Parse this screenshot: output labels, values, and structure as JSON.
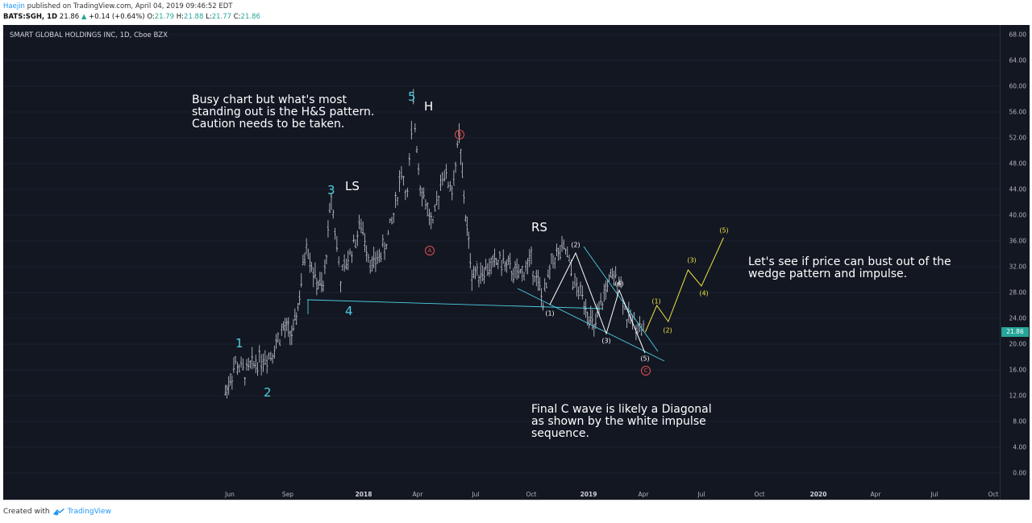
{
  "header": {
    "author": "Haejin",
    "published": "published on TradingView.com, April 04, 2019 09:46:52 EDT",
    "symbol_line": "BATS:SGH, 1D",
    "last": "21.86",
    "change": "+0.14 (+0.64%)",
    "o_label": "O:",
    "o": "21.79",
    "h_label": "H:",
    "h": "21.88",
    "l_label": "L:",
    "l": "21.77",
    "c_label": "C:",
    "c": "21.86"
  },
  "chart_title": "SMART GLOBAL HOLDINGS INC, 1D, Cboe BZX",
  "notes": {
    "hs": "Busy chart but what's most\nstanding out is the H&S pattern.\nCaution needs to be taken.",
    "breakout": "Let's see if price can bust out of the\nwedge pattern and impulse.",
    "diagonal": "Final C wave is likely a Diagonal\nas shown by the white impulse\nsequence."
  },
  "wave_labels": {
    "w1": "1",
    "w2": "2",
    "w3": "3",
    "w4": "4",
    "w5": "5",
    "ls": "LS",
    "h": "H",
    "rs": "RS",
    "a": "A",
    "b": "B",
    "c": "C",
    "d1": "(1)",
    "d2": "(2)",
    "d3": "(3)",
    "d4": "(4)",
    "d5": "(5)",
    "p1": "(1)",
    "p2": "(2)",
    "p3": "(3)",
    "p4": "(4)",
    "p5": "(5)"
  },
  "price_tag": "21.86",
  "footer": {
    "created_with": "Created with",
    "brand": "TradingView"
  },
  "colors": {
    "background": "#131722",
    "candle": "#d1d4dc",
    "trendline": "#4dd0e1",
    "projection": "#f0e442",
    "abc": "#e05050"
  },
  "chart_data": {
    "type": "line",
    "title": "SMART GLOBAL HOLDINGS INC, 1D, Cboe BZX",
    "ylim": [
      0,
      68
    ],
    "y_ticks": [
      "68.00",
      "64.00",
      "60.00",
      "56.00",
      "52.00",
      "48.00",
      "44.00",
      "40.00",
      "36.00",
      "32.00",
      "28.00",
      "24.00",
      "20.00",
      "16.00",
      "12.00",
      "8.00",
      "4.00",
      "0.00"
    ],
    "x_ticks": [
      "Jun",
      "Sep",
      "2018",
      "Apr",
      "Jul",
      "Oct",
      "2019",
      "Apr",
      "Jul",
      "Oct",
      "2020",
      "Apr",
      "Jul",
      "Oct"
    ],
    "series": [
      {
        "values": [
          [
            "2017-05-25",
            12.5
          ],
          [
            "2017-06-10",
            17.0
          ],
          [
            "2017-06-25",
            15.5
          ],
          [
            "2017-07-15",
            17.5
          ],
          [
            "2017-08-05",
            18.5
          ],
          [
            "2017-08-25",
            22.5
          ],
          [
            "2017-09-10",
            21.5
          ],
          [
            "2017-09-20",
            27.5
          ],
          [
            "2017-10-01",
            36.0
          ],
          [
            "2017-10-15",
            30.0
          ],
          [
            "2017-10-28",
            28.5
          ],
          [
            "2017-11-10",
            43.0
          ],
          [
            "2017-11-25",
            30.0
          ],
          [
            "2017-12-10",
            34.0
          ],
          [
            "2017-12-28",
            38.5
          ],
          [
            "2018-01-15",
            32.0
          ],
          [
            "2018-02-05",
            35.0
          ],
          [
            "2018-02-20",
            40.0
          ],
          [
            "2018-03-05",
            47.0
          ],
          [
            "2018-03-15",
            43.0
          ],
          [
            "2018-03-25",
            57.0
          ],
          [
            "2018-04-05",
            45.0
          ],
          [
            "2018-04-25",
            38.0
          ],
          [
            "2018-05-10",
            47.0
          ],
          [
            "2018-05-25",
            44.0
          ],
          [
            "2018-06-05",
            52.0
          ],
          [
            "2018-06-15",
            40.0
          ],
          [
            "2018-06-25",
            31.0
          ],
          [
            "2018-07-15",
            31.5
          ],
          [
            "2018-08-10",
            33.0
          ],
          [
            "2018-09-10",
            30.5
          ],
          [
            "2018-10-01",
            33.0
          ],
          [
            "2018-10-20",
            26.5
          ],
          [
            "2018-11-05",
            33.5
          ],
          [
            "2018-11-25",
            34.5
          ],
          [
            "2018-12-10",
            29.0
          ],
          [
            "2018-12-25",
            27.0
          ],
          [
            "2019-01-10",
            22.0
          ],
          [
            "2019-02-01",
            29.5
          ],
          [
            "2019-02-20",
            30.5
          ],
          [
            "2019-03-05",
            24.0
          ],
          [
            "2019-03-20",
            23.5
          ],
          [
            "2019-04-04",
            21.86
          ]
        ]
      },
      {
        "name": "(1)-(5) projection",
        "values": [
          [
            "2019-04-04",
            21.86
          ],
          [
            "2019-04-22",
            26.0
          ],
          [
            "2019-05-10",
            23.5
          ],
          [
            "2019-06-10",
            31.5
          ],
          [
            "2019-07-01",
            29.0
          ],
          [
            "2019-08-05",
            36.5
          ]
        ]
      }
    ],
    "annotations": [
      {
        "text": "1",
        "x": "2017-06-10",
        "y": 20.0
      },
      {
        "text": "2",
        "x": "2017-07-01",
        "y": 14.0
      },
      {
        "text": "3",
        "x": "2017-11-05",
        "y": 43.5
      },
      {
        "text": "4",
        "x": "2017-12-05",
        "y": 25.5
      },
      {
        "text": "5",
        "x": "2018-03-25",
        "y": 58.5
      },
      {
        "text": "(1)",
        "x": "2018-10-25",
        "y": 24.5
      },
      {
        "text": "(2)",
        "x": "2018-11-25",
        "y": 35.5
      },
      {
        "text": "(3)",
        "x": "2019-01-20",
        "y": 20.5
      },
      {
        "text": "(4)",
        "x": "2019-02-20",
        "y": 29.5
      },
      {
        "text": "(5)",
        "x": "2019-04-05",
        "y": 17.5
      }
    ]
  }
}
